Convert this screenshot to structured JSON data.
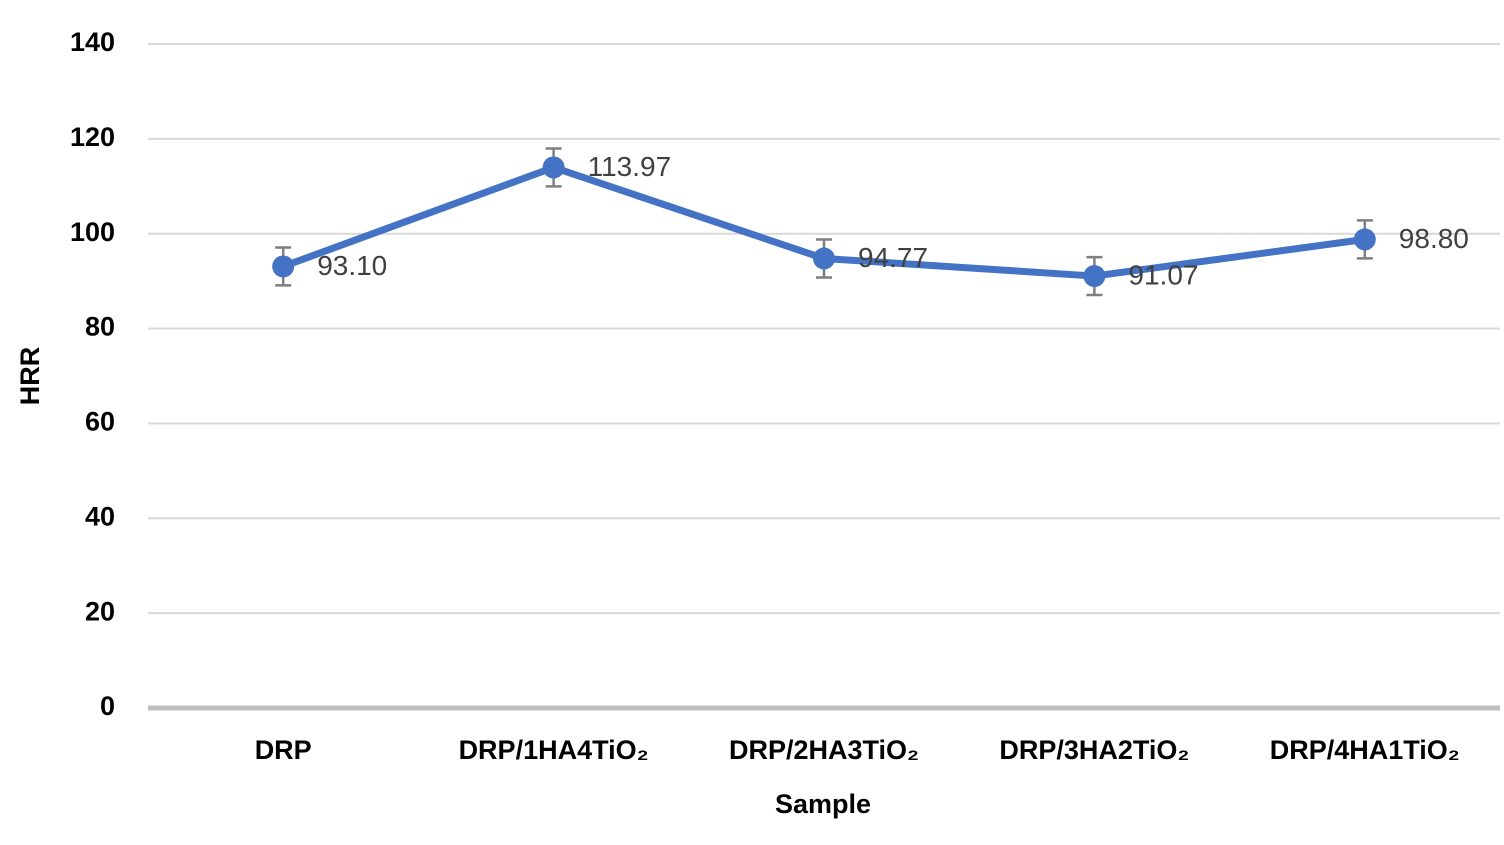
{
  "chart_data": {
    "type": "line",
    "x_label": "Sample",
    "y_label": "HRR",
    "categories": [
      "DRP",
      "DRP/1HA4TiO₂",
      "DRP/2HA3TiO₂",
      "DRP/3HA2TiO₂",
      "DRP/4HA1TiO₂"
    ],
    "values": [
      93.1,
      113.97,
      94.77,
      91.07,
      98.8
    ],
    "value_labels": [
      "93.10",
      "113.97",
      "94.77",
      "91.07",
      "98.80"
    ],
    "errors": [
      4,
      4,
      4,
      4,
      4
    ],
    "color": "#4472c4",
    "ylim": [
      0,
      140
    ],
    "yticks": [
      0,
      20,
      40,
      60,
      80,
      100,
      120,
      140
    ],
    "grid": true
  }
}
